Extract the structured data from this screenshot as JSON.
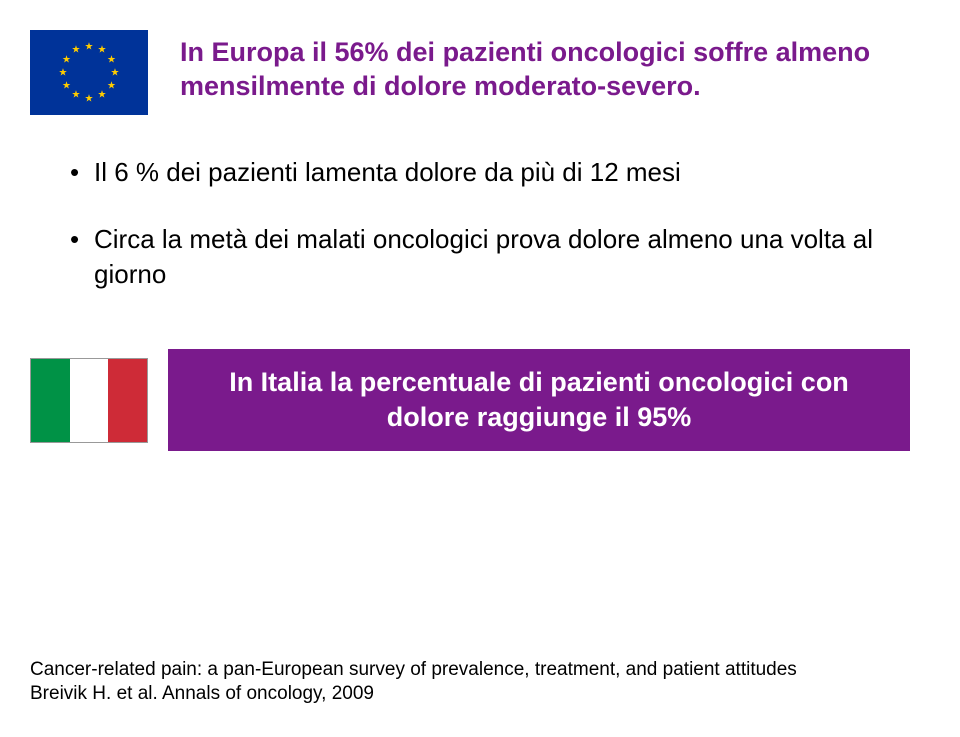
{
  "colors": {
    "purple": "#7a1a8c",
    "eu_blue": "#003399",
    "eu_gold": "#ffcc00",
    "it_green": "#009246",
    "it_white": "#ffffff",
    "it_red": "#ce2b37",
    "page_bg": "#ffffff",
    "body_text": "#000000"
  },
  "typography": {
    "headline_fontsize": 27,
    "headline_weight": "bold",
    "bullet_fontsize": 26,
    "callout_fontsize": 27,
    "callout_weight": "bold",
    "citation_fontsize": 19,
    "font_family": "Arial"
  },
  "layout": {
    "slide_width": 960,
    "slide_height": 737,
    "flag_width": 118,
    "flag_height": 85
  },
  "headline": {
    "text": "In Europa il 56% dei pazienti oncologici soffre almeno mensilmente di dolore moderato-severo."
  },
  "bullets": {
    "items": [
      {
        "text": "Il 6 % dei pazienti lamenta dolore da più di 12 mesi"
      },
      {
        "text": "Circa la metà dei malati oncologici prova dolore almeno una volta al giorno"
      }
    ]
  },
  "callout": {
    "text": "In Italia la percentuale di pazienti oncologici con dolore raggiunge il 95%"
  },
  "citation": {
    "line1": "Cancer-related pain: a pan-European survey of prevalence, treatment, and patient attitudes",
    "line2": "Breivik H. et al. Annals of oncology, 2009"
  }
}
